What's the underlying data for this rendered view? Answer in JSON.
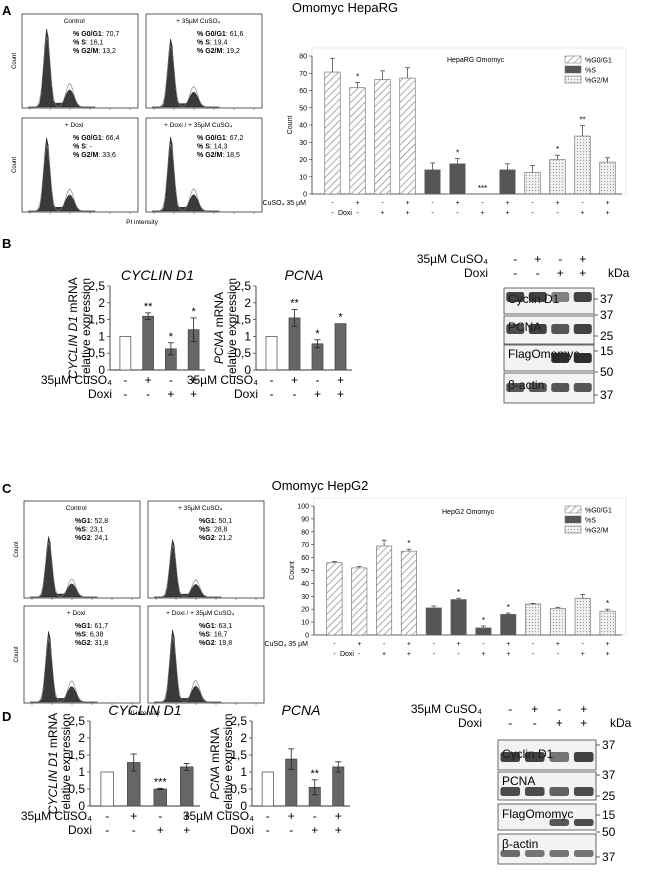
{
  "panelA": {
    "label": "A",
    "title": "Omomyc HepaRG",
    "flow": {
      "xlabel": "PI intensity",
      "ylabel": "Count",
      "panels": [
        {
          "name": "Control",
          "l1": "% G0/G1",
          "v1": ": 70,7",
          "l2": "% S",
          "v2": ": 16,1",
          "l3": "% G2/M",
          "v3": ": 13,2"
        },
        {
          "name": "+ 35µM CuSO₄",
          "l1": "% G0/G1",
          "v1": ": 61,6",
          "l2": "% S",
          "v2": ": 19,4",
          "l3": "% G2/M",
          "v3": ": 19,2"
        },
        {
          "name": "+ Doxi",
          "l1": "% G0/G1",
          "v1": ": 66,4",
          "l2": "% S",
          "v2": ": -",
          "l3": "% G2/M",
          "v3": ": 33,6"
        },
        {
          "name": "+ Doxi / + 35µM CuSO₄",
          "l1": "% G0/G1",
          "v1": ": 67,2",
          "l2": "% S",
          "v2": ": 14,3",
          "l3": "% G2/M",
          "v3": ": 18,5"
        }
      ]
    }
  },
  "panelB": {
    "label": "B",
    "cyclin_title": "CYCLIN D1",
    "cyclin_ylabel_gene": "CYCLIN D1",
    "cyclin_ylabel_rest": " mRNA",
    "pcna_title": "PCNA",
    "pcna_ylabel_gene": "PCNA",
    "pcna_ylabel_rest": " mRNA",
    "ylabel2": "relative expression",
    "row1": "35µM CuSO₄",
    "row2": "Doxi",
    "blot": {
      "row1": "35µM CuSO₄",
      "row2": "Doxi",
      "kda": "kDa",
      "bands": [
        "Cyclin D1",
        "PCNA",
        "FlagOmomyc",
        "β-actin"
      ],
      "markers": [
        "37",
        "37",
        "25",
        "15",
        "50",
        "37"
      ]
    }
  },
  "panelC": {
    "label": "C",
    "title": "Omomyc HepG2",
    "flow": {
      "xlabel": "PI intensity",
      "ylabel": "Count",
      "panels": [
        {
          "name": "Control",
          "l1": "%G1",
          "v1": ": 52,8",
          "l2": "%S",
          "v2": ": 23,1",
          "l3": "%G2",
          "v3": ": 24,1"
        },
        {
          "name": "+ 35µM CuSO₄",
          "l1": "%G1",
          "v1": ": 50,1",
          "l2": "%S",
          "v2": ": 28,8",
          "l3": "%G2",
          "v3": ": 21,2"
        },
        {
          "name": "+ Doxi",
          "l1": "%G1",
          "v1": ": 61,7",
          "l2": "%S",
          "v2": ": 6,38",
          "l3": "%G2",
          "v3": ": 31,8"
        },
        {
          "name": "+ Doxi / + 35µM CuSO₄",
          "l1": "%G1",
          "v1": ": 63,1",
          "l2": "%S",
          "v2": ": 16,7",
          "l3": "%G2",
          "v3": ": 19,8"
        }
      ]
    }
  },
  "panelD": {
    "label": "D",
    "cyclin_title": "CYCLIN D1",
    "cyclin_ylabel_gene": "CYCLIN D1",
    "cyclin_ylabel_rest": "  mRNA",
    "pcna_title": "PCNA",
    "pcna_ylabel_gene": "PCNA",
    "pcna_ylabel_rest": " mRNA",
    "ylabel2": "relative expression",
    "row1": "35µM CuSO₄",
    "row2": "Doxi",
    "blot": {
      "row1": "35µM CuSO₄",
      "row2": "Doxi",
      "kda": "kDa",
      "bands": [
        "Cyclin D1",
        "PCNA",
        "FlagOmomyc",
        "β-actin"
      ],
      "markers": [
        "37",
        "37",
        "25",
        "15",
        "50",
        "37"
      ]
    }
  },
  "chart_data": [
    {
      "id": "A_bar",
      "type": "bar",
      "title": "HepaRG Omomyc",
      "ylabel": "Count",
      "ylim": [
        0,
        80
      ],
      "yticks": [
        0,
        10,
        20,
        30,
        40,
        50,
        60,
        70,
        80
      ],
      "legend_position": "top-right",
      "row1_label": "CuSO₄ 35 µM",
      "row2_label": "Doxi",
      "row1": [
        "-",
        "+",
        "-",
        "+"
      ],
      "row2": [
        "-",
        "-",
        "+",
        "+"
      ],
      "series": [
        {
          "name": "%G0/G1",
          "values": [
            70.7,
            61.6,
            66.4,
            67.2
          ],
          "errors": [
            8,
            3,
            5,
            6
          ],
          "sig": [
            "",
            "*",
            "",
            ""
          ]
        },
        {
          "name": "%S",
          "values": [
            14,
            17.5,
            0,
            14
          ],
          "errors": [
            4,
            3,
            0,
            3.5
          ],
          "sig": [
            "",
            "*",
            "***",
            ""
          ]
        },
        {
          "name": "%G2/M",
          "values": [
            12.5,
            20,
            33.6,
            18.5
          ],
          "errors": [
            4,
            2.5,
            6,
            2.5
          ],
          "sig": [
            "",
            "*",
            "**",
            ""
          ]
        }
      ]
    },
    {
      "id": "B_cyclin",
      "type": "bar",
      "ylim": [
        0,
        2.5
      ],
      "yticks": [
        "0",
        "0,5",
        "1",
        "1,5",
        "2",
        "2,5"
      ],
      "row1": [
        "-",
        "+",
        "-",
        "+"
      ],
      "row2": [
        "-",
        "-",
        "+",
        "+"
      ],
      "values": [
        1,
        1.6,
        0.63,
        1.2
      ],
      "errors": [
        0,
        0.1,
        0.18,
        0.35
      ],
      "sig": [
        "",
        "**",
        "*",
        "*"
      ]
    },
    {
      "id": "B_pcna",
      "type": "bar",
      "ylim": [
        0,
        2.5
      ],
      "yticks": [
        "0",
        "0,5",
        "1",
        "1,5",
        "2",
        "2,5"
      ],
      "row1": [
        "-",
        "+",
        "-",
        "+"
      ],
      "row2": [
        "-",
        "-",
        "+",
        "+"
      ],
      "values": [
        1,
        1.55,
        0.78,
        1.38
      ],
      "errors": [
        0,
        0.25,
        0.12,
        0
      ],
      "sig": [
        "",
        "**",
        "*",
        "*"
      ]
    },
    {
      "id": "C_bar",
      "type": "bar",
      "title": "HepG2 Omomyc",
      "ylabel": "Count",
      "ylim": [
        0,
        100
      ],
      "yticks": [
        0,
        10,
        20,
        30,
        40,
        50,
        60,
        70,
        80,
        90,
        100
      ],
      "legend_position": "top-right",
      "row1_label": "CuSO₄ 35 µM",
      "row2_label": "Doxi",
      "row1": [
        "-",
        "+",
        "-",
        "+"
      ],
      "row2": [
        "-",
        "-",
        "+",
        "+"
      ],
      "series": [
        {
          "name": "%G0/G1",
          "values": [
            56,
            52,
            69,
            65
          ],
          "errors": [
            1,
            1,
            4.5,
            1.5
          ],
          "sig": [
            "",
            "",
            "",
            "*"
          ]
        },
        {
          "name": "%S",
          "values": [
            21,
            27.5,
            5.5,
            16
          ],
          "errors": [
            1.5,
            1,
            1.5,
            1
          ],
          "sig": [
            "",
            "*",
            "*",
            "*"
          ]
        },
        {
          "name": "%G2/M",
          "values": [
            24,
            20.5,
            28.5,
            18.5
          ],
          "errors": [
            0.5,
            1,
            3,
            1.5
          ],
          "sig": [
            "",
            "",
            "",
            "*"
          ]
        }
      ]
    },
    {
      "id": "D_cyclin",
      "type": "bar",
      "ylim": [
        0,
        2.5
      ],
      "yticks": [
        "0",
        "0,5",
        "1",
        "1,5",
        "2",
        "2,5"
      ],
      "row1": [
        "-",
        "+",
        "-",
        "+"
      ],
      "row2": [
        "-",
        "-",
        "+",
        "+"
      ],
      "values": [
        1,
        1.28,
        0.5,
        1.15
      ],
      "errors": [
        0,
        0.25,
        0.02,
        0.1
      ],
      "sig": [
        "",
        "",
        "***",
        ""
      ]
    },
    {
      "id": "D_pcna",
      "type": "bar",
      "ylim": [
        0,
        2.5
      ],
      "yticks": [
        "0",
        "0,5",
        "1",
        "1,5",
        "2",
        "2,5"
      ],
      "row1": [
        "-",
        "+",
        "-",
        "+"
      ],
      "row2": [
        "-",
        "-",
        "+",
        "+"
      ],
      "values": [
        1,
        1.38,
        0.55,
        1.15
      ],
      "errors": [
        0,
        0.3,
        0.22,
        0.15
      ],
      "sig": [
        "",
        "",
        "**",
        ""
      ]
    }
  ]
}
